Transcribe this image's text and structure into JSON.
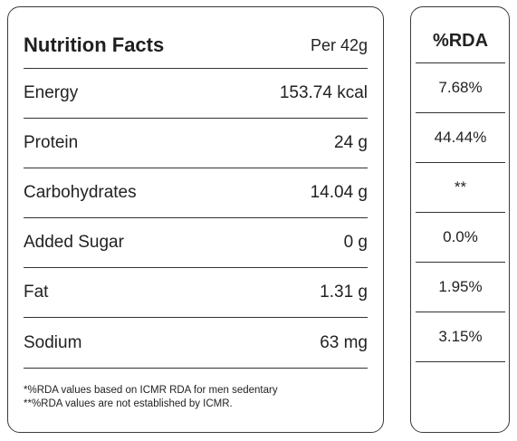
{
  "facts": {
    "title": "Nutrition Facts",
    "per": "Per 42g",
    "rows": [
      {
        "label": "Energy",
        "value": "153.74 kcal"
      },
      {
        "label": "Protein",
        "value": "24 g"
      },
      {
        "label": "Carbohydrates",
        "value": "14.04 g"
      },
      {
        "label": "Added Sugar",
        "value": "0 g"
      },
      {
        "label": "Fat",
        "value": "1.31 g"
      },
      {
        "label": "Sodium",
        "value": "63 mg"
      }
    ],
    "footnotes": [
      "*%RDA values based on ICMR RDA for men sedentary",
      "**%RDA values are not established by ICMR."
    ]
  },
  "rda": {
    "header": "%RDA",
    "values": [
      "7.68%",
      "44.44%",
      "**",
      "0.0%",
      "1.95%",
      "3.15%"
    ]
  }
}
